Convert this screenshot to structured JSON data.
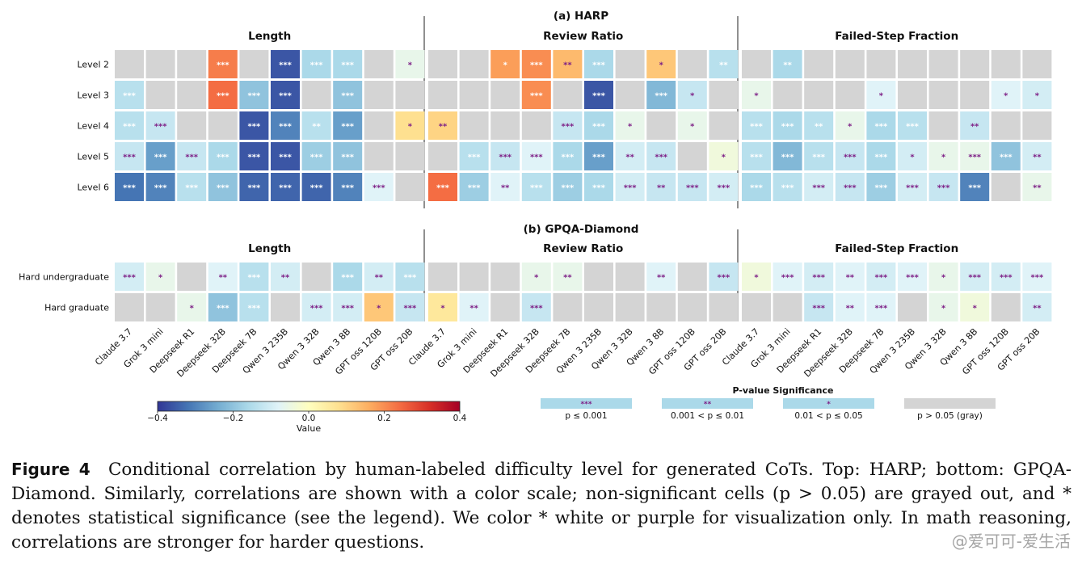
{
  "chart_data": {
    "type": "heatmap",
    "title": "",
    "models": [
      "Claude 3.7",
      "Grok 3 mini",
      "Deepseek R1",
      "Deepseek 32B",
      "Deepseek 7B",
      "Qwen 3 235B",
      "Qwen 3 32B",
      "Qwen 3 8B",
      "GPT oss 120B",
      "GPT oss 20B"
    ],
    "metrics": [
      "Length",
      "Review Ratio",
      "Failed-Step Fraction"
    ],
    "panels": [
      {
        "title": "(a) HARP",
        "rows": [
          "Level 2",
          "Level 3",
          "Level 4",
          "Level 5",
          "Level 6"
        ],
        "values": [
          [
            [
              null,
              null,
              null,
              0.22,
              null,
              -0.36,
              -0.16,
              -0.16,
              null,
              -0.06
            ],
            [
              -0.14,
              null,
              null,
              0.24,
              -0.2,
              -0.36,
              null,
              -0.2,
              null,
              null
            ],
            [
              -0.14,
              -0.12,
              null,
              null,
              -0.36,
              -0.3,
              -0.14,
              -0.26,
              null,
              0.08
            ],
            [
              -0.12,
              -0.26,
              -0.12,
              -0.16,
              -0.36,
              -0.36,
              -0.18,
              -0.2,
              null,
              null
            ],
            [
              -0.32,
              -0.3,
              -0.14,
              -0.2,
              -0.34,
              -0.34,
              -0.34,
              -0.3,
              -0.08,
              null
            ]
          ],
          [
            [
              null,
              null,
              0.18,
              0.2,
              0.14,
              -0.16,
              null,
              0.12,
              null,
              -0.14
            ],
            [
              null,
              null,
              null,
              0.2,
              null,
              -0.36,
              null,
              -0.22,
              -0.12,
              null
            ],
            [
              0.1,
              null,
              null,
              null,
              -0.12,
              -0.16,
              -0.06,
              null,
              -0.06,
              null
            ],
            [
              null,
              -0.14,
              -0.12,
              -0.08,
              -0.16,
              -0.26,
              -0.1,
              -0.12,
              null,
              -0.04
            ],
            [
              0.24,
              -0.18,
              -0.08,
              -0.14,
              -0.18,
              -0.16,
              -0.1,
              -0.12,
              -0.12,
              -0.1
            ]
          ],
          [
            [
              null,
              -0.16,
              null,
              null,
              null,
              null,
              null,
              null,
              null,
              null
            ],
            [
              -0.06,
              null,
              null,
              null,
              -0.08,
              null,
              null,
              null,
              -0.08,
              -0.1
            ],
            [
              -0.14,
              -0.16,
              -0.14,
              -0.06,
              -0.16,
              -0.14,
              null,
              -0.12,
              null,
              null
            ],
            [
              -0.14,
              -0.22,
              -0.14,
              -0.12,
              -0.16,
              -0.1,
              -0.06,
              -0.06,
              -0.2,
              -0.1
            ],
            [
              -0.16,
              -0.14,
              -0.1,
              -0.12,
              -0.18,
              -0.1,
              -0.12,
              -0.3,
              null,
              -0.06
            ]
          ]
        ],
        "significance": [
          [
            [
              "",
              "",
              "",
              "***",
              "",
              "***",
              "***",
              "***",
              "",
              "*"
            ],
            [
              "***",
              "",
              "",
              "***",
              "***",
              "***",
              "",
              "***",
              "",
              ""
            ],
            [
              "***",
              "***",
              "",
              "",
              "***",
              "***",
              "**",
              "***",
              "",
              "*"
            ],
            [
              "***",
              "***",
              "***",
              "***",
              "***",
              "***",
              "***",
              "***",
              "",
              ""
            ],
            [
              "***",
              "***",
              "***",
              "***",
              "***",
              "***",
              "***",
              "***",
              "***",
              ""
            ]
          ],
          [
            [
              "",
              "",
              "*",
              "***",
              "**",
              "***",
              "",
              "*",
              "",
              "**"
            ],
            [
              "",
              "",
              "",
              "***",
              "",
              "***",
              "",
              "***",
              "*",
              ""
            ],
            [
              "**",
              "",
              "",
              "",
              "***",
              "***",
              "*",
              "",
              "*",
              ""
            ],
            [
              "",
              "***",
              "***",
              "***",
              "***",
              "***",
              "**",
              "***",
              "",
              "*"
            ],
            [
              "***",
              "***",
              "**",
              "***",
              "***",
              "***",
              "***",
              "**",
              "***",
              "***"
            ]
          ],
          [
            [
              "",
              "**",
              "",
              "",
              "",
              "",
              "",
              "",
              "",
              ""
            ],
            [
              "*",
              "",
              "",
              "",
              "*",
              "",
              "",
              "",
              "*",
              "*"
            ],
            [
              "***",
              "***",
              "**",
              "*",
              "***",
              "***",
              "",
              "**",
              "",
              ""
            ],
            [
              "***",
              "***",
              "***",
              "***",
              "***",
              "*",
              "*",
              "***",
              "***",
              "**"
            ],
            [
              "***",
              "***",
              "***",
              "***",
              "***",
              "***",
              "***",
              "***",
              "",
              "**"
            ]
          ]
        ]
      },
      {
        "title": "(b) GPQA-Diamond",
        "rows": [
          "Hard undergraduate",
          "Hard graduate"
        ],
        "values": [
          [
            [
              -0.1,
              -0.06,
              null,
              -0.08,
              -0.14,
              -0.1,
              null,
              -0.16,
              -0.1,
              -0.14
            ],
            [
              null,
              null,
              -0.06,
              -0.2,
              -0.14,
              null,
              -0.1,
              -0.1,
              0.12,
              -0.12
            ]
          ],
          [
            [
              null,
              null,
              null,
              -0.06,
              -0.06,
              null,
              null,
              -0.08,
              null,
              -0.12
            ],
            [
              0.06,
              -0.08,
              null,
              -0.12,
              null,
              null,
              null,
              null,
              null,
              null
            ]
          ],
          [
            [
              -0.04,
              -0.08,
              -0.1,
              -0.08,
              -0.1,
              -0.08,
              -0.06,
              -0.1,
              -0.1,
              -0.08
            ],
            [
              null,
              null,
              -0.12,
              -0.08,
              -0.08,
              null,
              -0.06,
              -0.04,
              null,
              -0.1
            ]
          ]
        ],
        "significance": [
          [
            [
              "***",
              "*",
              "",
              "**",
              "***",
              "**",
              "",
              "***",
              "**",
              "***"
            ],
            [
              "",
              "",
              "*",
              "***",
              "***",
              "",
              "***",
              "***",
              "*",
              "***"
            ]
          ],
          [
            [
              "",
              "",
              "",
              "*",
              "**",
              "",
              "",
              "**",
              "",
              "***"
            ],
            [
              "*",
              "**",
              "",
              "***",
              "",
              "",
              "",
              "",
              "",
              ""
            ]
          ],
          [
            [
              "*",
              "***",
              "***",
              "**",
              "***",
              "***",
              "*",
              "***",
              "***",
              "***"
            ],
            [
              "",
              "",
              "***",
              "**",
              "***",
              "",
              "*",
              "*",
              "",
              "**"
            ]
          ]
        ]
      }
    ],
    "colorbar": {
      "label": "Value",
      "range": [
        -0.4,
        0.4
      ],
      "ticks": [
        "−0.4",
        "−0.2",
        "0.0",
        "0.2",
        "0.4"
      ],
      "colormap": "RdYlBu_r"
    },
    "significance_legend": {
      "title": "P-value Significance",
      "entries": [
        {
          "symbol": "***",
          "label": "p ≤ 0.001"
        },
        {
          "symbol": "**",
          "label": "0.001 < p ≤ 0.01"
        },
        {
          "symbol": "*",
          "label": "0.01 < p ≤ 0.05"
        },
        {
          "symbol": "",
          "label": "p > 0.05 (gray)"
        }
      ]
    }
  },
  "colors": {
    "nonsignificant": "#d4d4d4",
    "star_light": "#ffffff",
    "star_dark": "#7d1f86",
    "legend_swatch": "#abd9e9"
  },
  "caption": {
    "label": "Figure 4",
    "text": "Conditional correlation by human-labeled difficulty level for generated CoTs. Top: HARP; bottom: GPQA-Diamond. Similarly, correlations are shown with a color scale; non-significant cells (p > 0.05) are grayed out, and * denotes statistical significance (see the legend). We color * white or purple for visualization only. In math reasoning, correlations are stronger for harder questions."
  },
  "watermark": "@爱可可-爱生活"
}
